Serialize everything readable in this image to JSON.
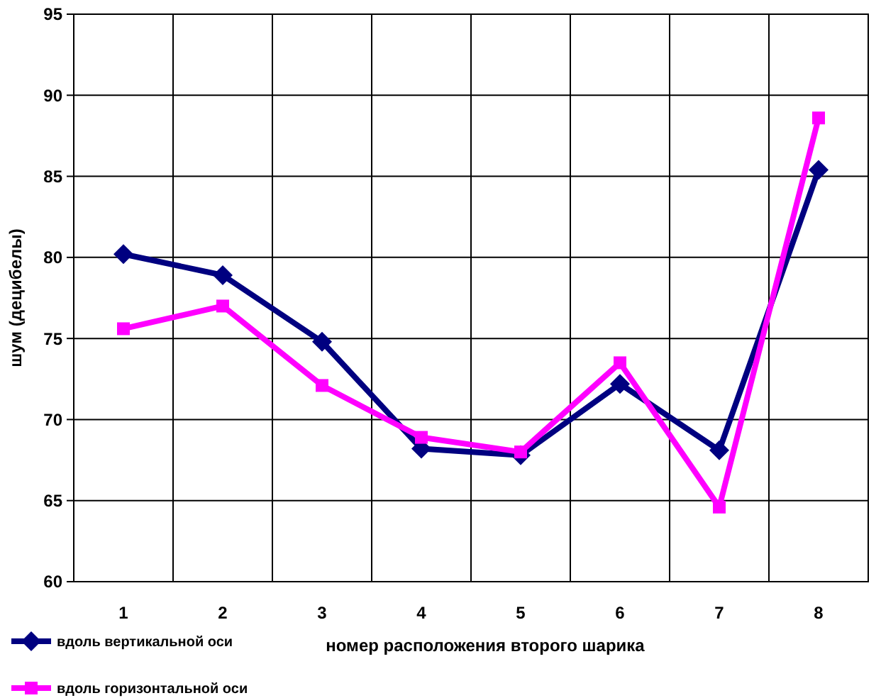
{
  "chart_data": {
    "type": "line",
    "xlabel": "номер расположения второго шарика",
    "ylabel": "шум (децибелы)",
    "categories": [
      "1",
      "2",
      "3",
      "4",
      "5",
      "6",
      "7",
      "8"
    ],
    "series": [
      {
        "name": "вдоль вертикальной оси",
        "color": "#000080",
        "marker": "diamond",
        "values": [
          80.2,
          78.9,
          74.8,
          68.2,
          67.8,
          72.2,
          68.1,
          85.4
        ]
      },
      {
        "name": "вдоль горизонтальной оси",
        "color": "#ff00ff",
        "marker": "square",
        "values": [
          75.6,
          77.0,
          72.1,
          68.9,
          68.0,
          73.5,
          64.6,
          88.6
        ]
      }
    ],
    "ylim": [
      60,
      95
    ],
    "yticks": [
      60,
      65,
      70,
      75,
      80,
      85,
      90,
      95
    ],
    "grid": true,
    "legend": "bottom left",
    "line_style": "solid"
  }
}
